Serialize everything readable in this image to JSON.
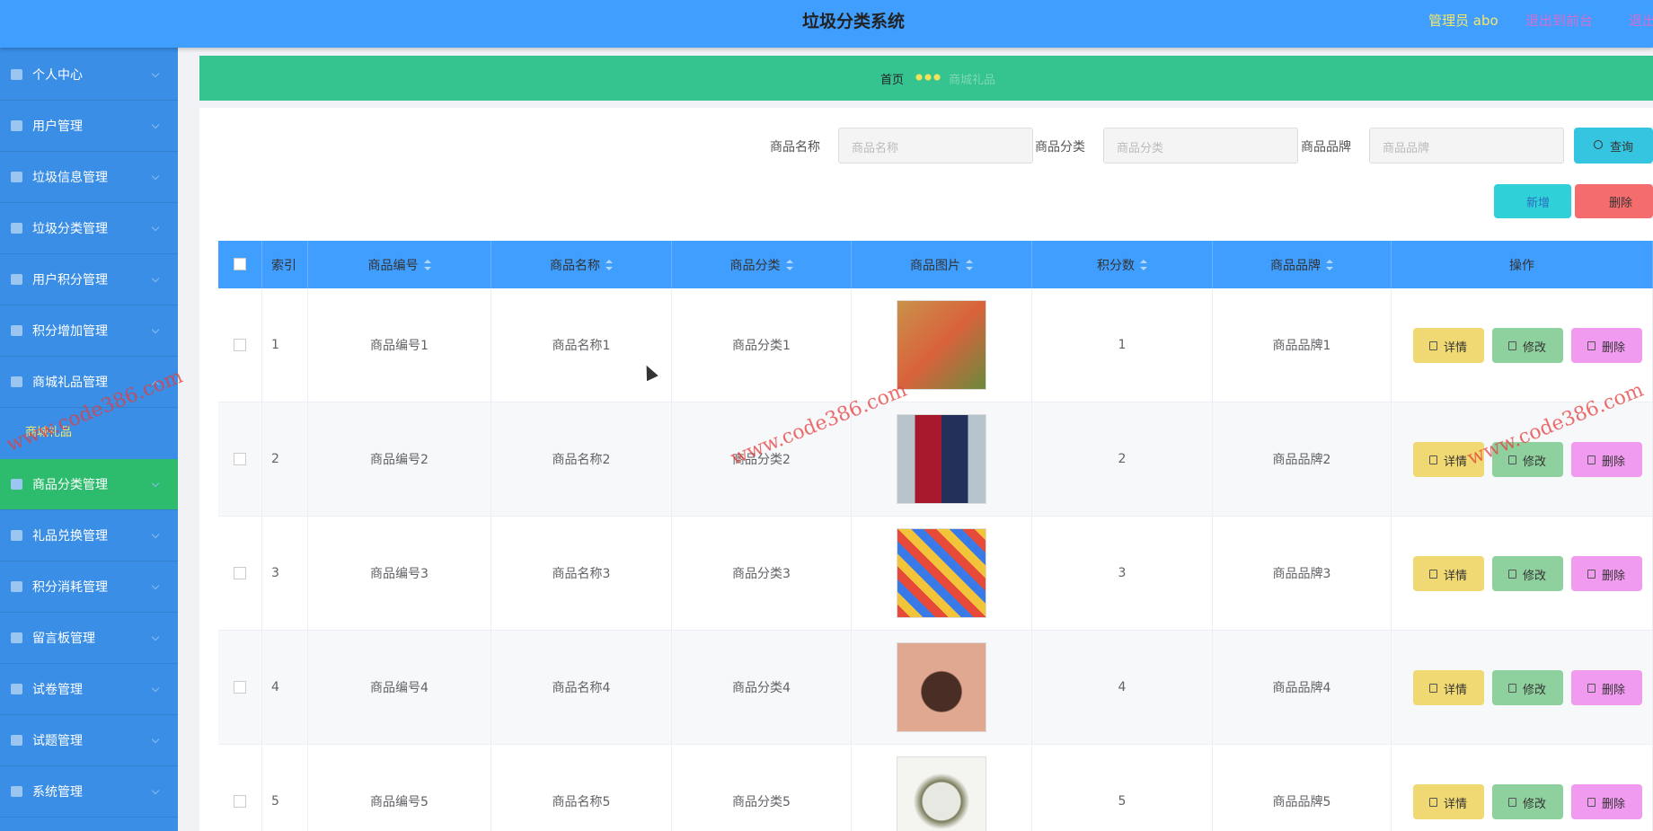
{
  "header": {
    "title": "垃圾分类系统",
    "user": "管理员 abo",
    "links": [
      "退出到前台",
      "退出登录"
    ]
  },
  "sidebar": {
    "items": [
      "个人中心",
      "用户管理",
      "垃圾信息管理",
      "垃圾分类管理",
      "用户积分管理",
      "积分增加管理",
      "商城礼品管理",
      "商品分类管理",
      "礼品兑换管理",
      "积分消耗管理",
      "留言板管理",
      "试卷管理",
      "试题管理",
      "系统管理"
    ],
    "subitem": "商城礼品"
  },
  "breadcrumb": {
    "home": "首页",
    "current": "商城礼品"
  },
  "search": {
    "fields": [
      {
        "label": "商品名称",
        "placeholder": "商品名称"
      },
      {
        "label": "商品分类",
        "placeholder": "商品分类"
      },
      {
        "label": "商品品牌",
        "placeholder": "商品品牌"
      }
    ],
    "button": "查询"
  },
  "toolbar": {
    "add": "新增",
    "delete": "删除"
  },
  "table": {
    "headers": [
      "索引",
      "商品编号",
      "商品名称",
      "商品分类",
      "商品图片",
      "积分数",
      "商品品牌",
      "操作"
    ],
    "rows": [
      [
        1,
        "商品编号1",
        "商品名称1",
        "商品分类1",
        1,
        "商品品牌1"
      ],
      [
        2,
        "商品编号2",
        "商品名称2",
        "商品分类2",
        2,
        "商品品牌2"
      ],
      [
        3,
        "商品编号3",
        "商品名称3",
        "商品分类3",
        3,
        "商品品牌3"
      ],
      [
        4,
        "商品编号4",
        "商品名称4",
        "商品分类4",
        4,
        "商品品牌4"
      ],
      [
        5,
        "商品编号5",
        "商品名称5",
        "商品分类5",
        5,
        "商品品牌5"
      ]
    ],
    "actions": [
      "详情",
      "修改",
      "删除"
    ]
  },
  "watermark": "www.code386.com"
}
